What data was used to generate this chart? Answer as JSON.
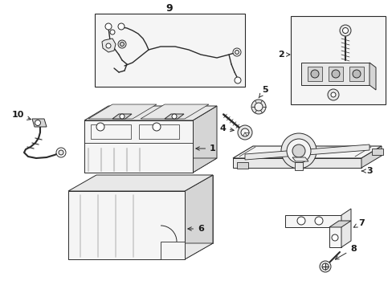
{
  "bg_color": "#ffffff",
  "line_color": "#2a2a2a",
  "fill_white": "#ffffff",
  "fill_light": "#f5f5f5",
  "fill_medium": "#e8e8e8",
  "fill_dark": "#d5d5d5",
  "fill_box": "#e0e8e0",
  "label_color": "#1a1a1a",
  "hatching_color": "#aaaaaa"
}
